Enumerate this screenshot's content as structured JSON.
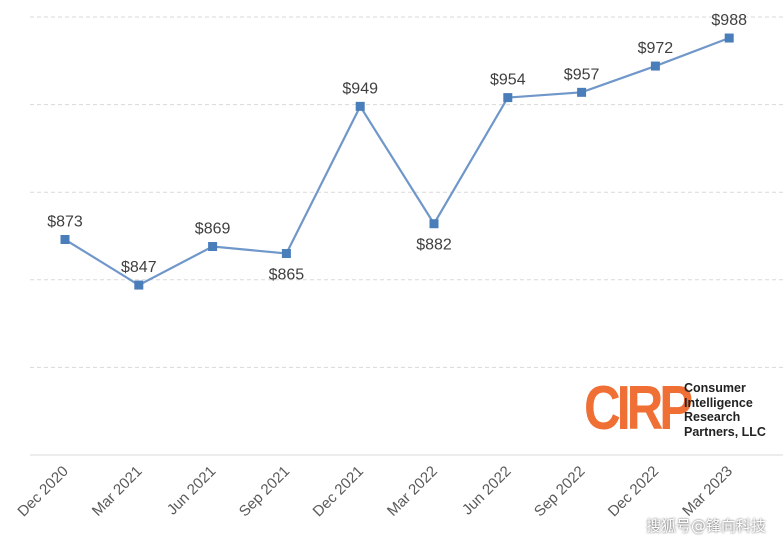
{
  "chart_data": {
    "type": "line",
    "categories": [
      "Dec 2020",
      "Mar 2021",
      "Jun 2021",
      "Sep 2021",
      "Dec 2021",
      "Mar 2022",
      "Jun 2022",
      "Sep 2022",
      "Dec 2022",
      "Mar 2023"
    ],
    "series": [
      {
        "values": [
          873,
          847,
          869,
          865,
          949,
          882,
          954,
          957,
          972,
          988
        ]
      }
    ],
    "data_labels": [
      "$873",
      "$847",
      "$869",
      "$865",
      "$949",
      "$882",
      "$954",
      "$957",
      "$972",
      "$988"
    ],
    "label_position": [
      "above",
      "above",
      "above",
      "below",
      "above",
      "below",
      "above",
      "above",
      "above",
      "above"
    ],
    "ylim": [
      750,
      1000
    ],
    "grid": true,
    "line_color": "#6f97c9",
    "marker_color": "#4a7ebb"
  },
  "logo": {
    "mark": "CIRP",
    "text": "Consumer\nIntelligence\nResearch\nPartners, LLC",
    "color": "#ef6f35"
  },
  "watermark": "搜狐号@锋向科技"
}
